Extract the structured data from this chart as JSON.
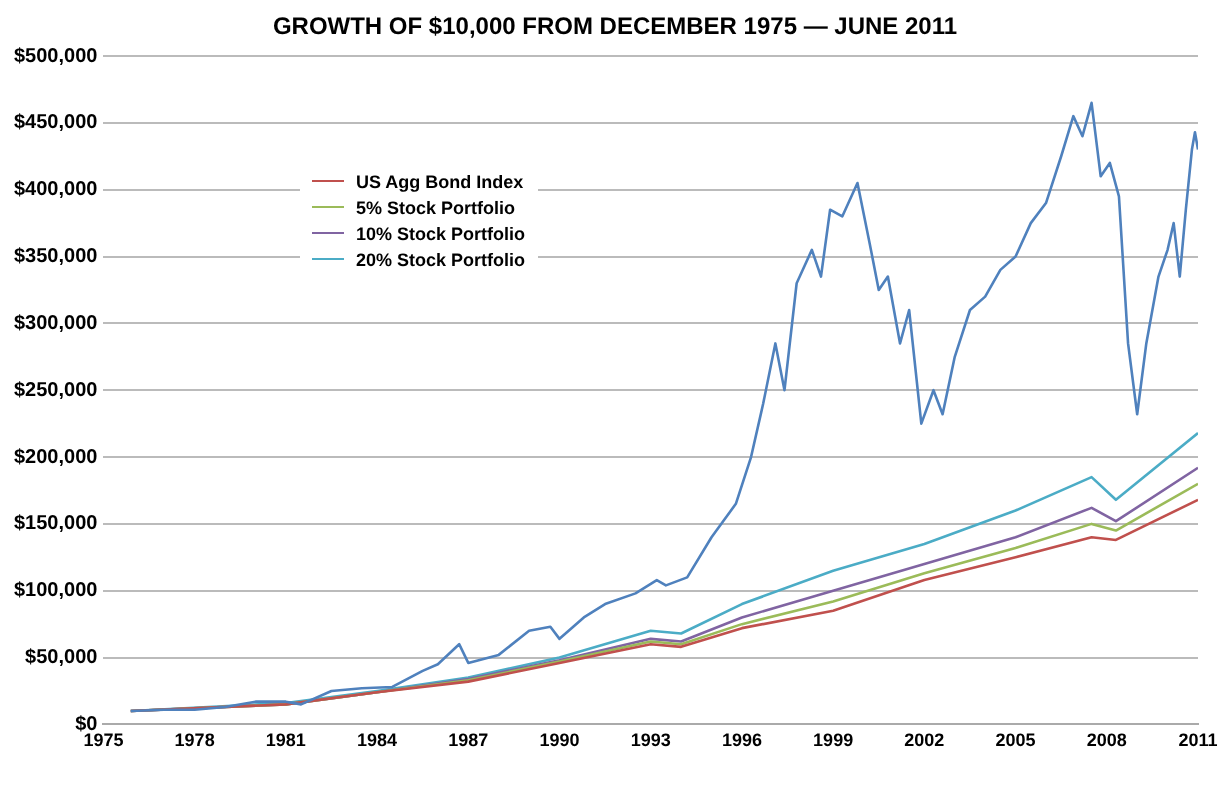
{
  "chart_data": {
    "type": "line",
    "title": "GROWTH OF $10,000 FROM DECEMBER 1975 — JUNE 2011",
    "xlim": [
      1975,
      2011
    ],
    "xticks": [
      1975,
      1978,
      1981,
      1984,
      1987,
      1990,
      1993,
      1996,
      1999,
      2002,
      2005,
      2008,
      2011
    ],
    "ylim": [
      0,
      500000
    ],
    "yticks": [
      {
        "value": 0,
        "label": "$0"
      },
      {
        "value": 50000,
        "label": "$50,000"
      },
      {
        "value": 100000,
        "label": "$100,000"
      },
      {
        "value": 150000,
        "label": "$150,000"
      },
      {
        "value": 200000,
        "label": "$200,000"
      },
      {
        "value": 250000,
        "label": "$250,000"
      },
      {
        "value": 300000,
        "label": "$300,000"
      },
      {
        "value": 350000,
        "label": "$350,000"
      },
      {
        "value": 400000,
        "label": "$400,000"
      },
      {
        "value": 450000,
        "label": "$450,000"
      },
      {
        "value": 500000,
        "label": "$500,000"
      }
    ],
    "grid": "y",
    "legend": "top left",
    "marker": "none",
    "line_style": "solid",
    "series": [
      {
        "color": "#4f81bd",
        "x": [
          1975.9,
          1977,
          1978,
          1979,
          1980,
          1981,
          1981.5,
          1982.5,
          1983.5,
          1984.5,
          1985.5,
          1986,
          1986.7,
          1987,
          1988,
          1989,
          1989.7,
          1990,
          1990.8,
          1991.5,
          1992.5,
          1993.2,
          1993.5,
          1994.2,
          1995,
          1995.8,
          1996.3,
          1996.7,
          1997.1,
          1997.4,
          1997.8,
          1998.3,
          1998.6,
          1998.9,
          1999.3,
          1999.8,
          2000.2,
          2000.5,
          2000.8,
          2001.2,
          2001.5,
          2001.9,
          2002.3,
          2002.6,
          2003,
          2003.5,
          2004,
          2004.5,
          2005,
          2005.5,
          2006,
          2006.5,
          2006.9,
          2007.2,
          2007.5,
          2007.8,
          2008.1,
          2008.4,
          2008.7,
          2009,
          2009.3,
          2009.7,
          2010,
          2010.2,
          2010.4,
          2010.6,
          2010.8,
          2010.9,
          2011
        ],
        "values": [
          10000,
          11000,
          11000,
          13000,
          17000,
          17000,
          15000,
          25000,
          27000,
          28000,
          40000,
          45000,
          60000,
          46000,
          52000,
          70000,
          73000,
          64000,
          80000,
          90000,
          98000,
          108000,
          104000,
          110000,
          140000,
          165000,
          200000,
          240000,
          285000,
          250000,
          330000,
          355000,
          335000,
          385000,
          380000,
          405000,
          360000,
          325000,
          335000,
          285000,
          310000,
          225000,
          250000,
          232000,
          275000,
          310000,
          320000,
          340000,
          350000,
          375000,
          390000,
          425000,
          455000,
          440000,
          465000,
          410000,
          420000,
          395000,
          285000,
          232000,
          285000,
          335000,
          355000,
          375000,
          335000,
          385000,
          430000,
          443000,
          430000
        ]
      },
      {
        "name": "US Agg Bond Index",
        "color": "#c0504d",
        "x": [
          1975.9,
          1981,
          1984,
          1987,
          1990,
          1993,
          1994,
          1996,
          1999,
          2002,
          2005,
          2007.5,
          2008.3,
          2011
        ],
        "values": [
          10000,
          15000,
          24000,
          32000,
          46000,
          60000,
          58000,
          72000,
          85000,
          108000,
          125000,
          140000,
          138000,
          168000
        ]
      },
      {
        "name": "5% Stock Portfolio",
        "color": "#9bbb59",
        "x": [
          1975.9,
          1981,
          1984,
          1987,
          1990,
          1993,
          1994,
          1996,
          1999,
          2002,
          2005,
          2007.5,
          2008.3,
          2011
        ],
        "values": [
          10000,
          15000,
          24000,
          33000,
          47000,
          62000,
          60000,
          75000,
          92000,
          113000,
          132000,
          150000,
          145000,
          180000
        ]
      },
      {
        "name": "10% Stock Portfolio",
        "color": "#8064a2",
        "x": [
          1975.9,
          1981,
          1984,
          1987,
          1990,
          1993,
          1994,
          1996,
          1999,
          2002,
          2005,
          2007.5,
          2008.3,
          2011
        ],
        "values": [
          10000,
          15000,
          24000,
          34000,
          48000,
          64000,
          62000,
          80000,
          100000,
          120000,
          140000,
          162000,
          152000,
          192000
        ]
      },
      {
        "name": "20% Stock Portfolio",
        "color": "#4bacc6",
        "x": [
          1975.9,
          1981,
          1984,
          1987,
          1990,
          1993,
          1994,
          1996,
          1999,
          2002,
          2005,
          2007.5,
          2008.3,
          2011
        ],
        "values": [
          10000,
          16000,
          25000,
          35000,
          50000,
          70000,
          68000,
          90000,
          115000,
          135000,
          160000,
          185000,
          168000,
          218000
        ]
      }
    ]
  }
}
